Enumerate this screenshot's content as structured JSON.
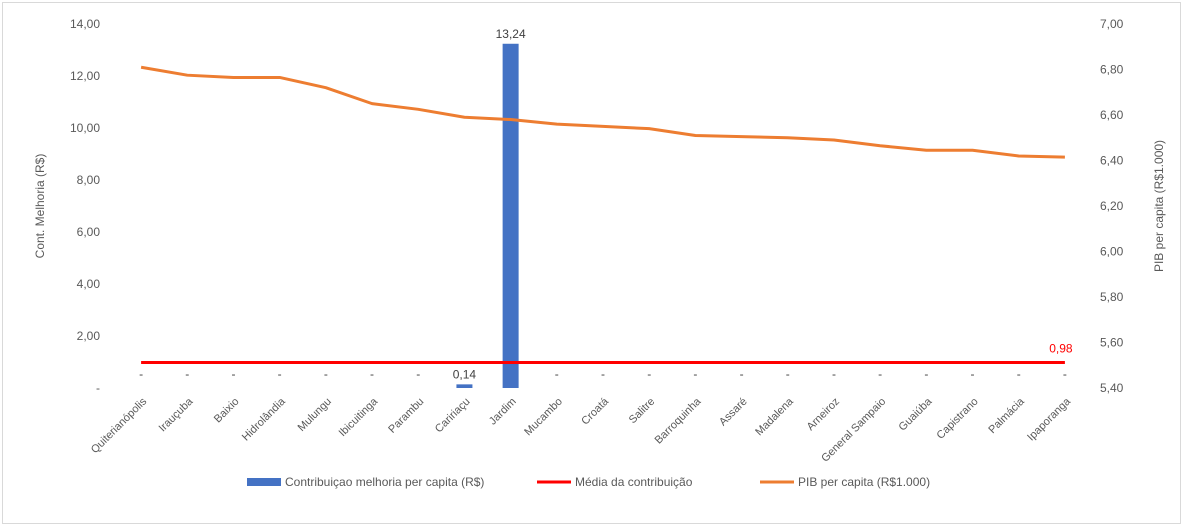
{
  "chart_data": {
    "type": "bar",
    "categories": [
      "Quiterianópolis",
      "Irauçuba",
      "Baixio",
      "Hidrolândia",
      "Mulungu",
      "Ibicuitinga",
      "Parambu",
      "Caririaçu",
      "Jardim",
      "Mucambo",
      "Croatá",
      "Salitre",
      "Barroquinha",
      "Assaré",
      "Madalena",
      "Arneiroz",
      "General Sampaio",
      "Guaiúba",
      "Capistrano",
      "Palmácia",
      "Ipaporanga"
    ],
    "series": [
      {
        "name": "Contribuiçao melhoria per capita (R$)",
        "type": "bar",
        "axis": "left",
        "color": "#4472c4",
        "values": [
          0,
          0,
          0,
          0,
          0,
          0,
          0,
          0.14,
          13.24,
          0,
          0,
          0,
          0,
          0,
          0,
          0,
          0,
          0,
          0,
          0,
          0
        ],
        "data_labels": [
          "-",
          "-",
          "-",
          "-",
          "-",
          "-",
          "-",
          "0,14",
          "13,24",
          "-",
          "-",
          "-",
          "-",
          "-",
          "-",
          "-",
          "-",
          "-",
          "-",
          "-",
          "-"
        ]
      },
      {
        "name": "Média da contribuição",
        "type": "line",
        "axis": "left",
        "color": "#ff0000",
        "values": [
          0.98,
          0.98,
          0.98,
          0.98,
          0.98,
          0.98,
          0.98,
          0.98,
          0.98,
          0.98,
          0.98,
          0.98,
          0.98,
          0.98,
          0.98,
          0.98,
          0.98,
          0.98,
          0.98,
          0.98,
          0.98
        ],
        "end_label": "0,98"
      },
      {
        "name": "PIB per capita (R$1.000)",
        "type": "line",
        "axis": "right",
        "color": "#ed7d31",
        "values": [
          6.81,
          6.775,
          6.765,
          6.765,
          6.72,
          6.65,
          6.625,
          6.59,
          6.58,
          6.56,
          6.55,
          6.54,
          6.51,
          6.505,
          6.5,
          6.49,
          6.465,
          6.445,
          6.445,
          6.42,
          6.415
        ]
      }
    ],
    "ylabel": "Cont. Melhoria (R$)",
    "ylabel_right": "PIB per capita (R$1.000)",
    "ylim": [
      0,
      14
    ],
    "ylim_right": [
      5.4,
      7.0
    ],
    "y_ticks": [
      "-",
      "2,00",
      "4,00",
      "6,00",
      "8,00",
      "10,00",
      "12,00",
      "14,00"
    ],
    "y_ticks_right": [
      "5,40",
      "5,60",
      "5,80",
      "6,00",
      "6,20",
      "6,40",
      "6,60",
      "6,80",
      "7,00"
    ],
    "grid": false,
    "legend_position": "bottom"
  }
}
